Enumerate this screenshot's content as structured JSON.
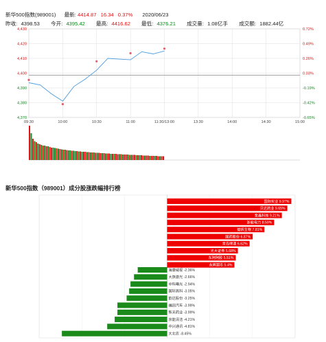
{
  "header": {
    "name": "新华500指数(989001)",
    "latest_label": "最新:",
    "latest": "4414.87",
    "change": "16.34",
    "change_pct": "0.37%",
    "date": "2020/06/23",
    "prev_close_label": "昨收:",
    "prev_close": "4398.53",
    "open_label": "今开:",
    "open": "4395.42",
    "high_label": "最高:",
    "high": "4416.62",
    "low_label": "最低:",
    "low": "4376.21",
    "volume_label": "成交量:",
    "volume": "1.08亿手",
    "amount_label": "成交额:",
    "amount": "1882.44亿"
  },
  "colors": {
    "up": "#e01010",
    "down": "#0a8a1a",
    "line": "#4a9de0",
    "grid": "#dddddd"
  },
  "chart_data": [
    {
      "type": "line",
      "y_ticks_left": [
        "4,430",
        "4,420",
        "4,410",
        "4,400",
        "4,390",
        "4,380",
        "4,370"
      ],
      "y_ticks_right": [
        "0.72%",
        "0.49%",
        "0.26%",
        "0.03%",
        "-0.19%",
        "-0.42%",
        "-0.65%"
      ],
      "x_ticks": [
        "09:30",
        "10:00",
        "10:30",
        "11:00",
        "11:30/13:00",
        "13:30",
        "14:00",
        "14:30",
        "15:00"
      ],
      "ylim": [
        4370,
        4430
      ],
      "prev_close": 4398.53,
      "x": [
        "09:30",
        "09:40",
        "09:50",
        "10:00",
        "10:10",
        "10:20",
        "10:30",
        "10:40",
        "10:50",
        "11:00",
        "11:10",
        "11:20",
        "11:30"
      ],
      "values": [
        4393.5,
        4392,
        4386,
        4381,
        4391,
        4396,
        4402,
        4410,
        4409.5,
        4409,
        4414.5,
        4413,
        4415
      ],
      "markers": [
        {
          "x": "09:30",
          "y": 4395.4
        },
        {
          "x": "10:00",
          "y": 4379.0
        },
        {
          "x": "10:30",
          "y": 4408.0
        },
        {
          "x": "11:00",
          "y": 4413.5
        },
        {
          "x": "11:30",
          "y": 4416.6
        }
      ]
    },
    {
      "type": "bar",
      "x_range": [
        "09:30",
        "11:30"
      ],
      "volume_bars": [
        {
          "v": 100,
          "c": "up"
        },
        {
          "v": 78,
          "c": "down"
        },
        {
          "v": 62,
          "c": "up"
        },
        {
          "v": 55,
          "c": "down"
        },
        {
          "v": 52,
          "c": "up"
        },
        {
          "v": 48,
          "c": "down"
        },
        {
          "v": 46,
          "c": "up"
        },
        {
          "v": 44,
          "c": "down"
        },
        {
          "v": 42,
          "c": "up"
        },
        {
          "v": 42,
          "c": "down"
        },
        {
          "v": 40,
          "c": "up"
        },
        {
          "v": 40,
          "c": "down"
        },
        {
          "v": 38,
          "c": "up"
        },
        {
          "v": 36,
          "c": "up"
        },
        {
          "v": 36,
          "c": "down"
        },
        {
          "v": 35,
          "c": "down"
        },
        {
          "v": 34,
          "c": "up"
        },
        {
          "v": 33,
          "c": "down"
        },
        {
          "v": 32,
          "c": "up"
        },
        {
          "v": 31,
          "c": "down"
        },
        {
          "v": 30,
          "c": "up"
        },
        {
          "v": 30,
          "c": "down"
        },
        {
          "v": 29,
          "c": "up"
        },
        {
          "v": 28,
          "c": "down"
        },
        {
          "v": 28,
          "c": "down"
        },
        {
          "v": 27,
          "c": "up"
        },
        {
          "v": 27,
          "c": "down"
        },
        {
          "v": 26,
          "c": "down"
        },
        {
          "v": 26,
          "c": "up"
        },
        {
          "v": 25,
          "c": "down"
        },
        {
          "v": 25,
          "c": "up"
        },
        {
          "v": 24,
          "c": "down"
        },
        {
          "v": 24,
          "c": "up"
        },
        {
          "v": 24,
          "c": "up"
        },
        {
          "v": 23,
          "c": "down"
        },
        {
          "v": 23,
          "c": "up"
        },
        {
          "v": 22,
          "c": "down"
        },
        {
          "v": 22,
          "c": "up"
        },
        {
          "v": 22,
          "c": "down"
        },
        {
          "v": 21,
          "c": "up"
        },
        {
          "v": 21,
          "c": "down"
        },
        {
          "v": 21,
          "c": "up"
        },
        {
          "v": 20,
          "c": "up"
        },
        {
          "v": 20,
          "c": "down"
        },
        {
          "v": 20,
          "c": "up"
        },
        {
          "v": 19,
          "c": "down"
        },
        {
          "v": 19,
          "c": "up"
        },
        {
          "v": 19,
          "c": "up"
        },
        {
          "v": 18,
          "c": "down"
        },
        {
          "v": 18,
          "c": "up"
        },
        {
          "v": 18,
          "c": "down"
        },
        {
          "v": 18,
          "c": "up"
        },
        {
          "v": 17,
          "c": "up"
        },
        {
          "v": 17,
          "c": "down"
        },
        {
          "v": 17,
          "c": "up"
        },
        {
          "v": 16,
          "c": "down"
        },
        {
          "v": 16,
          "c": "up"
        },
        {
          "v": 16,
          "c": "up"
        },
        {
          "v": 16,
          "c": "down"
        },
        {
          "v": 15,
          "c": "up"
        },
        {
          "v": 15,
          "c": "down"
        },
        {
          "v": 15,
          "c": "up"
        },
        {
          "v": 15,
          "c": "up"
        },
        {
          "v": 14,
          "c": "down"
        },
        {
          "v": 14,
          "c": "up"
        },
        {
          "v": 14,
          "c": "down"
        },
        {
          "v": 14,
          "c": "up"
        },
        {
          "v": 13,
          "c": "up"
        },
        {
          "v": 13,
          "c": "down"
        },
        {
          "v": 13,
          "c": "up"
        },
        {
          "v": 13,
          "c": "up"
        },
        {
          "v": 12,
          "c": "down"
        },
        {
          "v": 12,
          "c": "up"
        },
        {
          "v": 12,
          "c": "up"
        },
        {
          "v": 12,
          "c": "down"
        },
        {
          "v": 12,
          "c": "up"
        },
        {
          "v": 11,
          "c": "up"
        },
        {
          "v": 11,
          "c": "down"
        },
        {
          "v": 11,
          "c": "up"
        },
        {
          "v": 11,
          "c": "up"
        }
      ]
    },
    {
      "type": "bar",
      "orientation": "horizontal",
      "title": "新华500指数（989001）成分股涨跌幅排行榜",
      "xlim": [
        -10,
        10
      ],
      "gainers": [
        {
          "name": "国际实业",
          "value": 9.97,
          "label": "国际实业 9.97%"
        },
        {
          "name": "贝达药业",
          "value": 9.65,
          "label": "贝达药业 9.65%"
        },
        {
          "name": "金晶科技",
          "value": 9.21,
          "label": "金晶科技 9.21%"
        },
        {
          "name": "浙能电力",
          "value": 8.59,
          "label": "浙能电力 8.59%"
        },
        {
          "name": "健帆生物",
          "value": 7.81,
          "label": "健帆生物 7.81%"
        },
        {
          "name": "国药股份",
          "value": 6.87,
          "label": "国药股份 6.87%"
        },
        {
          "name": "青岛啤酒",
          "value": 6.62,
          "label": "青岛啤酒 6.62%"
        },
        {
          "name": "光大证券",
          "value": 5.68,
          "label": "光大证券 5.68%"
        },
        {
          "name": "东阿阿胶",
          "value": 5.51,
          "label": "东阿阿胶 5.51%"
        },
        {
          "name": "永辉超市",
          "value": 5.4,
          "label": "永辉超市  5.4%"
        }
      ],
      "losers": [
        {
          "name": "海康威视",
          "value": -2.36,
          "label": "海康威视 -2.36%"
        },
        {
          "name": "大族激光",
          "value": -2.66,
          "label": "大族激光 -2.66%"
        },
        {
          "name": "中科曙光",
          "value": -2.94,
          "label": "中科曙光 -2.94%"
        },
        {
          "name": "国轩高科",
          "value": -3.05,
          "label": "国轩高科 -3.05%"
        },
        {
          "name": "韵达股份",
          "value": -3.25,
          "label": "韵达股份 -3.25%"
        },
        {
          "name": "福田汽车",
          "value": -3.99,
          "label": "福田汽车 -3.99%"
        },
        {
          "name": "新天药业",
          "value": -3.99,
          "label": "新天药业 -3.99%"
        },
        {
          "name": "京能清洁",
          "value": -4.21,
          "label": "京能清洁 -4.21%"
        },
        {
          "name": "中兴通讯",
          "value": -4.81,
          "label": "中兴通讯 -4.81%"
        },
        {
          "name": "大北农",
          "value": -8.45,
          "label": "大北农 -8.45%"
        }
      ]
    }
  ]
}
